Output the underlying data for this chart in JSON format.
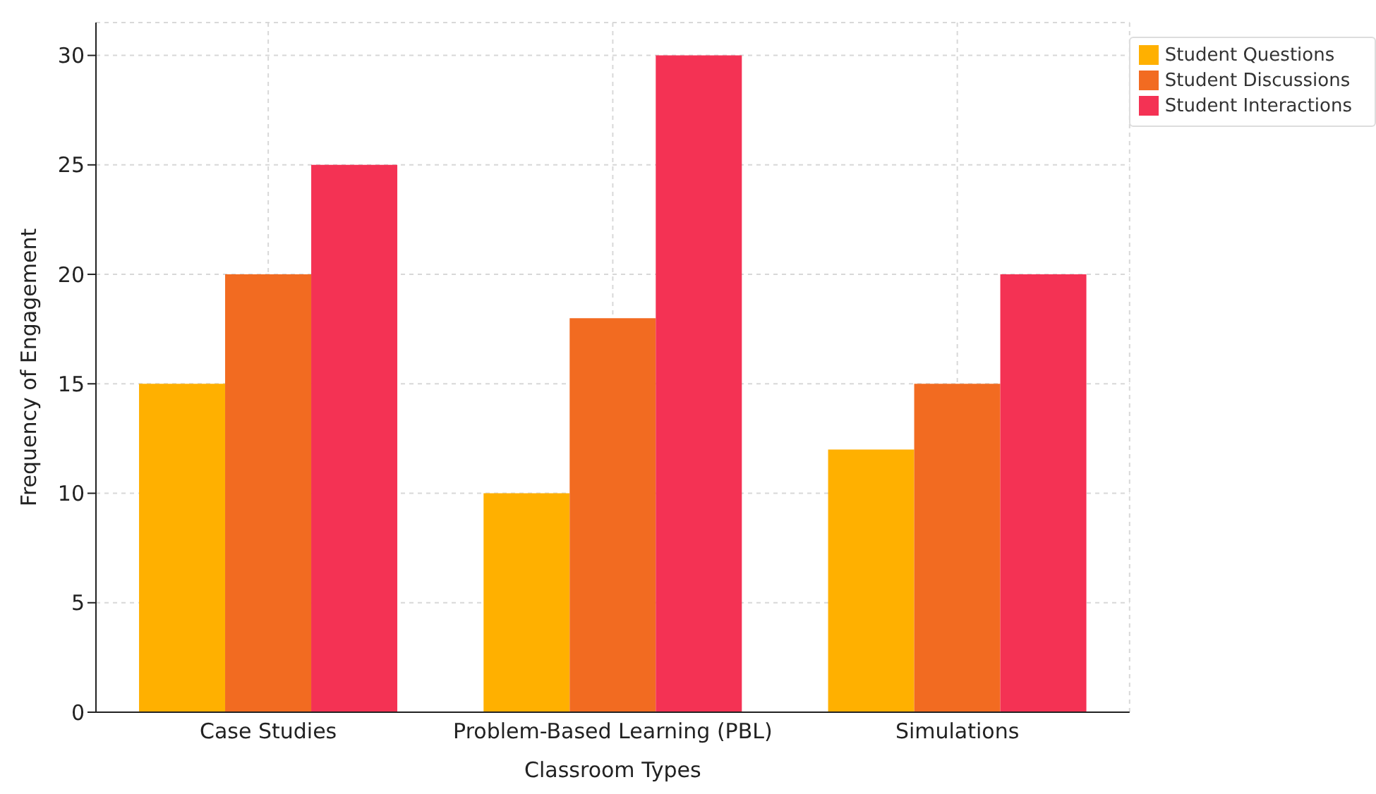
{
  "chart_data": {
    "type": "bar",
    "xlabel": "Classroom Types",
    "ylabel": "Frequency of Engagement",
    "categories": [
      "Case Studies",
      "Problem-Based Learning (PBL)",
      "Simulations"
    ],
    "series": [
      {
        "name": "Student Questions",
        "color": "#ffb000",
        "values": [
          15,
          10,
          12
        ]
      },
      {
        "name": "Student Discussions",
        "color": "#f26b21",
        "values": [
          20,
          18,
          15
        ]
      },
      {
        "name": "Student Interactions",
        "color": "#f43254",
        "values": [
          25,
          30,
          20
        ]
      }
    ],
    "ylim": [
      0,
      31.5
    ],
    "yticks": [
      0,
      5,
      10,
      15,
      20,
      25,
      30
    ],
    "grid": true,
    "legend": "top right"
  }
}
